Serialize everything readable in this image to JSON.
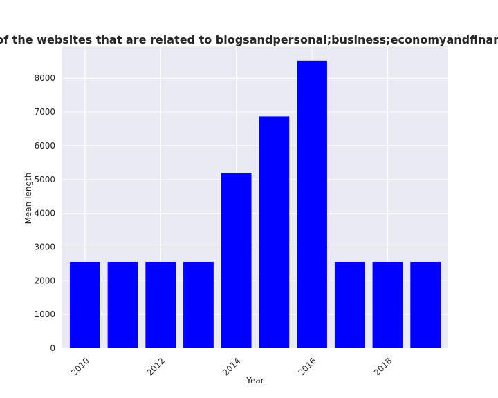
{
  "chart_data": {
    "type": "bar",
    "title": "Mean length of privacy policies of the websites that are related to blogsandpersonal;business;economyandfinance Mean length in privacy policies",
    "xlabel": "Year",
    "ylabel": "Mean length",
    "x": [
      2010,
      2011,
      2012,
      2013,
      2014,
      2015,
      2016,
      2017,
      2018,
      2019
    ],
    "values": [
      2560,
      2560,
      2560,
      2560,
      5200,
      6870,
      8520,
      2560,
      2560,
      2560
    ],
    "xticks": [
      2010,
      2012,
      2014,
      2016,
      2018
    ],
    "xlim": [
      2009.4,
      2019.6
    ],
    "ylim": [
      0,
      8946
    ],
    "yticks": [
      0,
      1000,
      2000,
      3000,
      4000,
      5000,
      6000,
      7000,
      8000
    ],
    "grid": true,
    "colors": {
      "bar": "#0000ff",
      "plot_background": "#eaeaf2",
      "grid": "#ffffff"
    }
  }
}
